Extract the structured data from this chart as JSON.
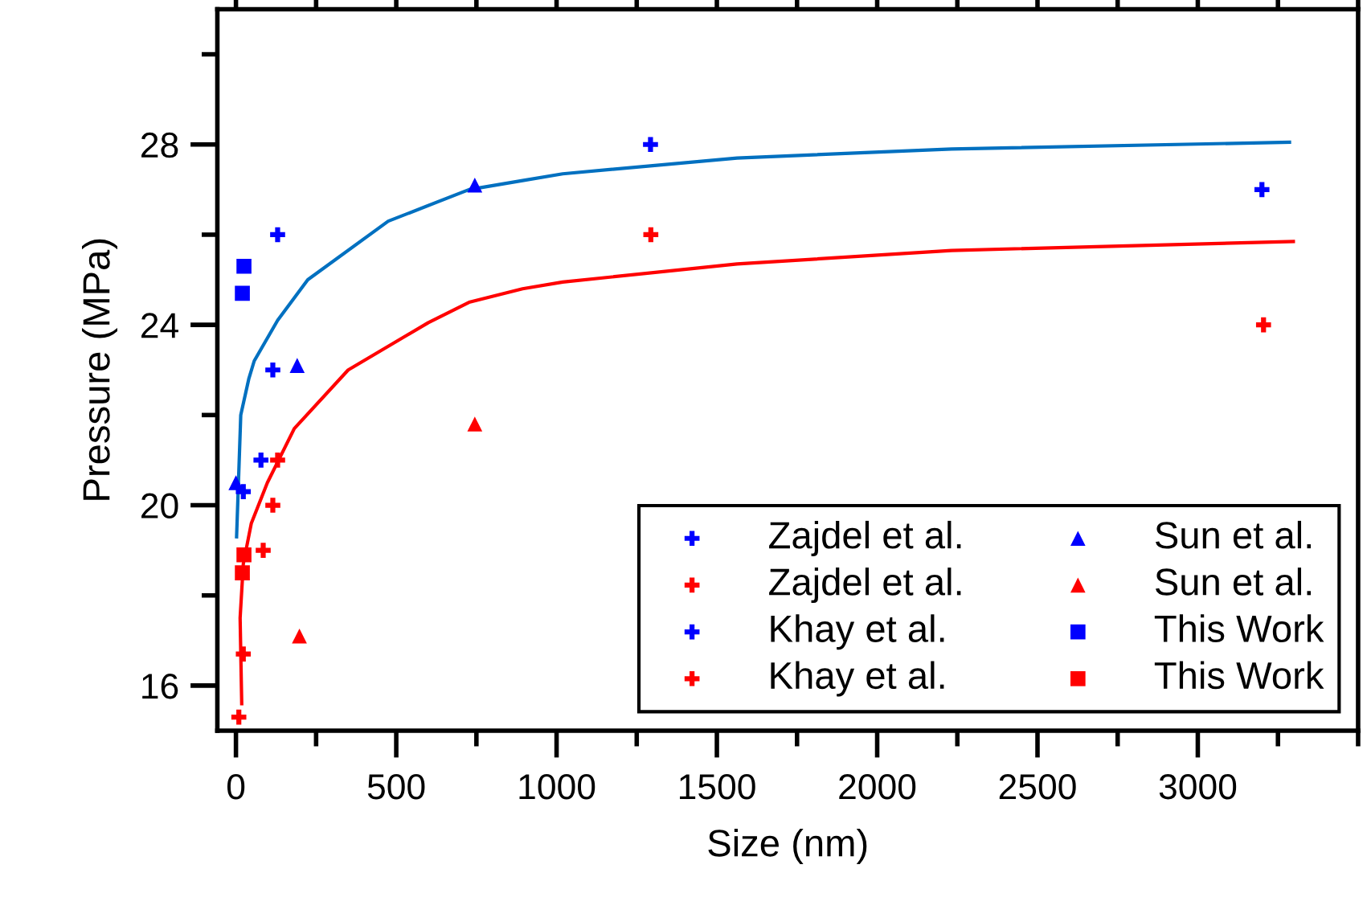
{
  "chart_data": {
    "type": "scatter",
    "xlabel": "Size (nm)",
    "ylabel": "Pressure (MPa)",
    "xlim": [
      -58,
      3500
    ],
    "ylim": [
      15,
      31
    ],
    "xticks": [
      0,
      500,
      1000,
      1500,
      2000,
      2500,
      3000
    ],
    "yticks": [
      16,
      20,
      24,
      28
    ],
    "grid": false,
    "legend": "bottom right",
    "series": [
      {
        "name": "Zajdel et al.",
        "color": "#0000ff",
        "marker": "cross",
        "x": [
          23,
          115,
          1293,
          3200
        ],
        "values": [
          20.3,
          23.0,
          28.0,
          27.0
        ]
      },
      {
        "name": "Zajdel et al.",
        "color": "#ff0000",
        "marker": "cross",
        "x": [
          9,
          23,
          85,
          115,
          130
        ],
        "values": [
          15.3,
          16.7,
          19.0,
          20.0,
          21.0
        ]
      },
      {
        "name": "Khay et al.",
        "color": "#0000ff",
        "marker": "cross",
        "x": [
          78,
          130
        ],
        "values": [
          21.0,
          26.0
        ]
      },
      {
        "name": "Khay et al.",
        "color": "#ff0000",
        "marker": "cross",
        "x": [
          1294,
          3205
        ],
        "values": [
          26.0,
          24.0
        ]
      },
      {
        "name": "Sun et al.",
        "color": "#0000ff",
        "marker": "triangle",
        "x": [
          0,
          191,
          745
        ],
        "values": [
          20.5,
          23.1,
          27.1
        ]
      },
      {
        "name": "Sun et al.",
        "color": "#ff0000",
        "marker": "triangle",
        "x": [
          198,
          745
        ],
        "values": [
          17.1,
          21.8
        ]
      },
      {
        "name": "This Work",
        "color": "#0000ff",
        "marker": "square",
        "x": [
          20,
          25
        ],
        "values": [
          24.7,
          25.3
        ]
      },
      {
        "name": "This Work",
        "color": "#ff0000",
        "marker": "square",
        "x": [
          20,
          25
        ],
        "values": [
          18.5,
          18.9
        ]
      },
      {
        "type": "line",
        "color": "#0070c0",
        "marker": "none",
        "line_style": "solid",
        "x": [
          2,
          15,
          40,
          57,
          130,
          224,
          475,
          727,
          894,
          1019,
          1563,
          2232,
          3286
        ],
        "values": [
          19.3,
          22.0,
          22.8,
          23.2,
          24.1,
          25.0,
          26.3,
          27.0,
          27.2,
          27.35,
          27.7,
          27.9,
          28.05
        ]
      },
      {
        "type": "line",
        "color": "#ff0000",
        "marker": "none",
        "line_style": "solid",
        "x": [
          18,
          13,
          23,
          48,
          98,
          182,
          350,
          600,
          727,
          894,
          1019,
          1563,
          2232,
          3298
        ],
        "values": [
          15.6,
          17.5,
          18.7,
          19.6,
          20.5,
          21.7,
          23.0,
          24.05,
          24.5,
          24.8,
          24.95,
          25.35,
          25.65,
          25.85
        ]
      }
    ]
  }
}
